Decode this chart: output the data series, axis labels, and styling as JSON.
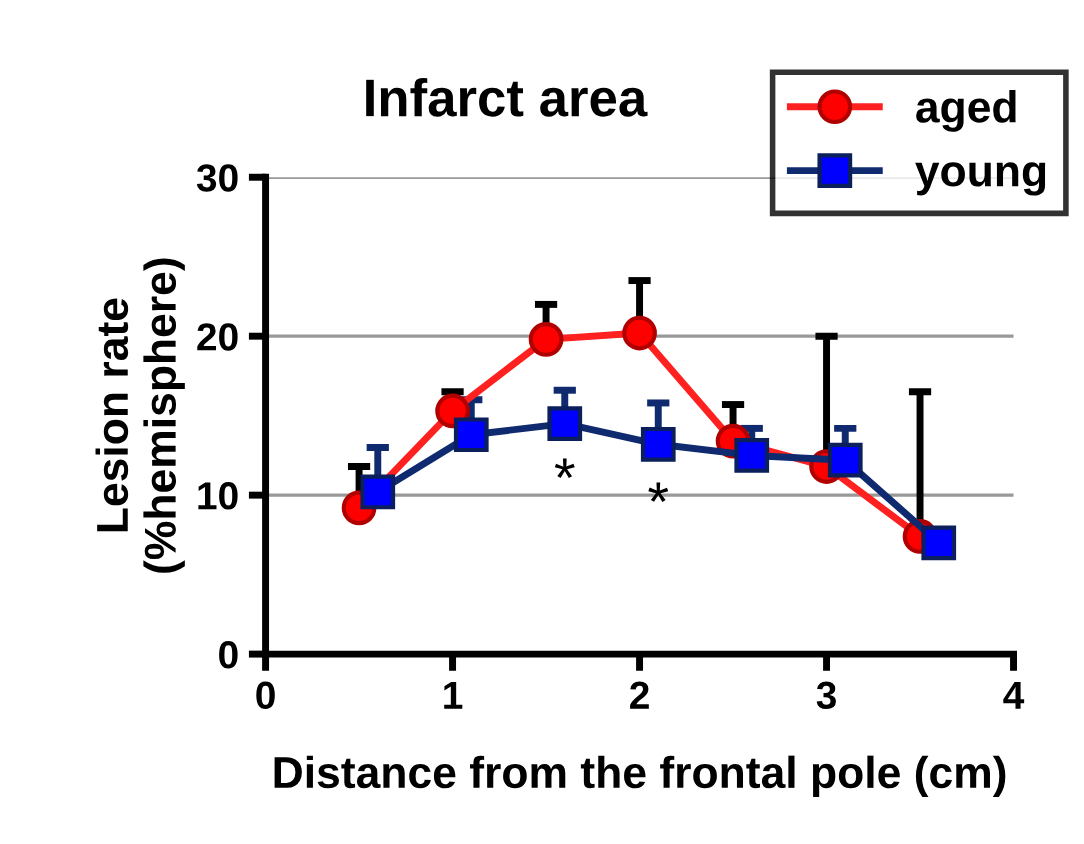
{
  "chart_data": {
    "type": "line",
    "title": "Infarct area",
    "xlabel": "Distance from the frontal pole (cm)",
    "ylabel": "Lesion rate\n(%hemisphere)",
    "xlim": [
      0,
      4
    ],
    "xticks": [
      0,
      1,
      2,
      3,
      4
    ],
    "ylim": [
      0,
      30
    ],
    "yticks": [
      0,
      10,
      20,
      30
    ],
    "grid": "y",
    "legend": "top right",
    "line_style": "solid",
    "series": [
      {
        "name": "aged",
        "color": "#ff0000",
        "marker": "circle",
        "x": [
          0.5,
          1,
          1.5,
          2,
          2.5,
          3,
          3.5
        ],
        "values": [
          9.2,
          15.3,
          19.8,
          20.2,
          13.4,
          11.8,
          7.4
        ],
        "errors": [
          [
            9.2,
            11.8
          ],
          [
            15.3,
            16.5
          ],
          [
            19.8,
            22
          ],
          [
            20.2,
            23.5
          ],
          [
            13.4,
            15.7
          ],
          [
            11.8,
            20
          ],
          [
            7.4,
            16.5
          ]
        ]
      },
      {
        "name": "young",
        "color": "#0000ff",
        "marker": "square",
        "x": [
          0.6,
          1.1,
          1.6,
          2.1,
          2.6,
          3.1,
          3.6
        ],
        "values": [
          10.2,
          13.8,
          14.5,
          13.2,
          12.5,
          12.2,
          7.0
        ],
        "errors": [
          [
            10.2,
            13
          ],
          [
            13.8,
            16
          ],
          [
            14.5,
            16.6
          ],
          [
            13.2,
            15.8
          ],
          [
            12.5,
            14.2
          ],
          [
            12.2,
            14.2
          ],
          null
        ]
      }
    ],
    "annotations": [
      "*",
      "*"
    ]
  }
}
